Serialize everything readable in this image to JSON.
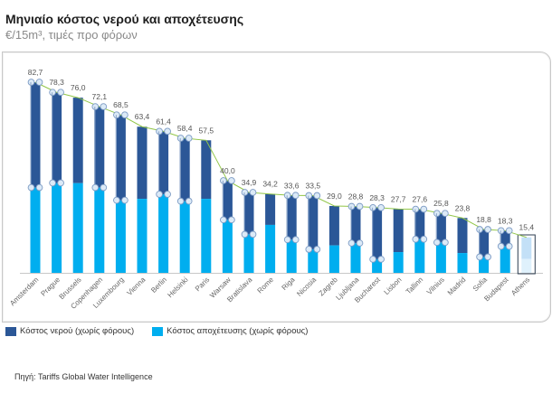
{
  "title": "Μηνιαίο κόστος νερού και αποχέτευσης",
  "subtitle": "€/15m³, τιμές προ φόρων",
  "source": "Πηγή: Tariffs Global Water Intelligence",
  "colors": {
    "water": "#2b5797",
    "sewage": "#00aeef",
    "athens_water": "#c3e0f7",
    "athens_sewage": "#dff1fc",
    "trend": "#92c648",
    "label": "#555555",
    "axis": "#c8c8c8"
  },
  "legend": [
    {
      "key": "water",
      "label": "Κόστος νερού (χωρίς φόρους)"
    },
    {
      "key": "sewage",
      "label": "Κόστος αποχέτευσης (χωρίς φόρους)"
    }
  ],
  "chart_data": {
    "type": "bar",
    "stacked": true,
    "title": "Μηνιαίο κόστος νερού και αποχέτευσης",
    "subtitle": "€/15m³, τιμές προ φόρων",
    "xlabel": "",
    "ylabel": "€/15m³",
    "ylim": [
      0,
      82.7
    ],
    "grid": false,
    "legend_position": "bottom-left",
    "highlighted_category": "Athens",
    "categories": [
      "Amsterdam",
      "Prague",
      "Brussels",
      "Copenhagen",
      "Luxembourg",
      "Vienna",
      "Berlin",
      "Helsinki",
      "Paris",
      "Warsaw",
      "Bratislava",
      "Rome",
      "Riga",
      "Nicosia",
      "Zagreb",
      "Ljubljana",
      "Bucharest",
      "Lisbon",
      "Tallinn",
      "Vilnius",
      "Madrid",
      "Sofia",
      "Budapest",
      "Athens"
    ],
    "totals": [
      82.7,
      78.3,
      76.0,
      72.1,
      68.5,
      63.4,
      61.4,
      58.4,
      57.5,
      40.0,
      34.9,
      34.2,
      33.6,
      33.5,
      29.0,
      28.8,
      28.3,
      27.7,
      27.6,
      25.8,
      23.8,
      18.8,
      18.3,
      15.4
    ],
    "total_labels": [
      "82,7",
      "78,3",
      "76,0",
      "72,1",
      "68,5",
      "63,4",
      "61,4",
      "58,4",
      "57,5",
      "40,0",
      "34,9",
      "34,2",
      "33,6",
      "33,5",
      "29,0",
      "28,8",
      "28,3",
      "27,7",
      "27,6",
      "25,8",
      "23,8",
      "18,8",
      "18,3",
      "15,4"
    ],
    "series": [
      {
        "name": "Κόστος αποχέτευσης (χωρίς φόρους)",
        "key": "sewage",
        "values": [
          37.0,
          39.0,
          38.9,
          37.0,
          31.5,
          32.1,
          34.1,
          31.1,
          32.1,
          23.0,
          16.7,
          20.8,
          14.4,
          10.2,
          11.9,
          12.9,
          5.9,
          9.0,
          14.6,
          13.2,
          8.6,
          6.9,
          11.5,
          6.0
        ]
      },
      {
        "name": "Κόστος νερού (χωρίς φόρους)",
        "key": "water",
        "values": [
          45.7,
          39.3,
          37.1,
          35.1,
          37.0,
          31.3,
          27.3,
          27.3,
          25.4,
          17.0,
          18.2,
          13.4,
          19.2,
          23.3,
          17.1,
          15.9,
          22.4,
          18.7,
          13.0,
          12.6,
          15.2,
          11.9,
          6.8,
          9.4
        ]
      }
    ],
    "trend_line": true,
    "selected_markers": [
      "Amsterdam",
      "Prague",
      "Copenhagen",
      "Luxembourg",
      "Berlin",
      "Helsinki",
      "Warsaw",
      "Bratislava",
      "Riga",
      "Nicosia",
      "Ljubljana",
      "Bucharest",
      "Tallinn",
      "Vilnius",
      "Sofia",
      "Budapest"
    ]
  }
}
